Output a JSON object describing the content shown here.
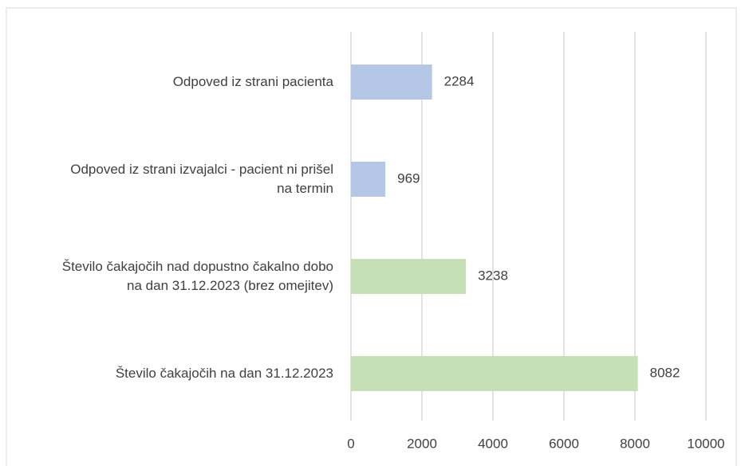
{
  "chart_data": {
    "type": "hbar",
    "categories": [
      "Odpoved iz strani pacienta",
      "Odpoved iz strani izvajalci - pacient ni prišel na termin",
      "Število čakajočih nad dopustno čakalno dobo na dan 31.12.2023 (brez omejitev)",
      "Število čakajočih na dan 31.12.2023"
    ],
    "values": [
      2284,
      969,
      3238,
      8082
    ],
    "colors": [
      "#b4c7e7",
      "#b4c7e7",
      "#c5e0b4",
      "#c5e0b4"
    ],
    "xlim": [
      0,
      10000
    ],
    "xticks": [
      0,
      2000,
      4000,
      6000,
      8000,
      10000
    ],
    "grid": true
  }
}
